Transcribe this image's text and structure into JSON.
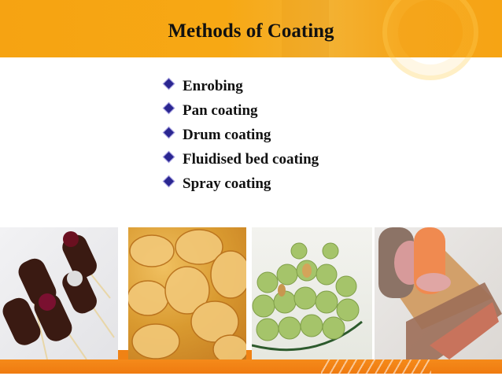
{
  "slide": {
    "title": "Methods of Coating",
    "bullets": [
      "Enrobing",
      "Pan coating",
      "Drum coating",
      "Fluidised bed coating",
      "Spray coating"
    ],
    "images": [
      "chocolate-coated-sticks",
      "coated-chips",
      "coated-green-peas",
      "sausages-in-casing"
    ],
    "colors": {
      "header": "#f6a312",
      "bullet": "#2a2690",
      "bottom_strip": "#f08214"
    }
  }
}
